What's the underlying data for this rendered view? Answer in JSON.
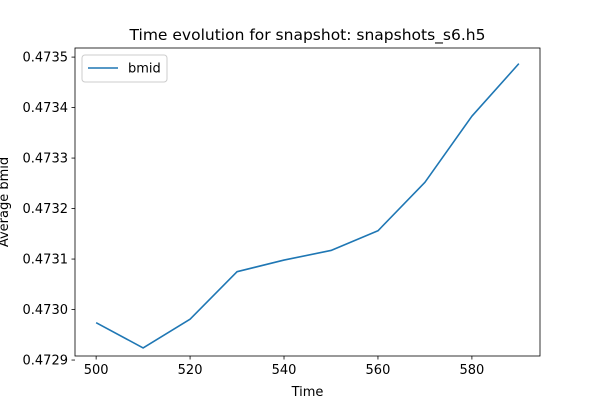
{
  "chart_data": {
    "type": "line",
    "title": "Time evolution for snapshot: snapshots_s6.h5",
    "xlabel": "Time",
    "ylabel": "Average bmid",
    "xlim": [
      495.5,
      594.5
    ],
    "ylim": [
      0.472908,
      0.473518
    ],
    "xticks": [
      500,
      520,
      540,
      560,
      580
    ],
    "yticks": [
      0.4729,
      0.473,
      0.4731,
      0.4732,
      0.4733,
      0.4734,
      0.4735
    ],
    "ytick_labels": [
      "0.4729",
      "0.4730",
      "0.4731",
      "0.4732",
      "0.4733",
      "0.4734",
      "0.4735"
    ],
    "legend": {
      "position": "upper-left",
      "entries": [
        "bmid"
      ]
    },
    "series": [
      {
        "name": "bmid",
        "color": "#1f77b4",
        "x": [
          500,
          510,
          520,
          530,
          540,
          550,
          560,
          570,
          580,
          590
        ],
        "y": [
          0.472974,
          0.472924,
          0.472981,
          0.473075,
          0.473098,
          0.473117,
          0.473156,
          0.473252,
          0.473383,
          0.473487
        ]
      }
    ]
  }
}
